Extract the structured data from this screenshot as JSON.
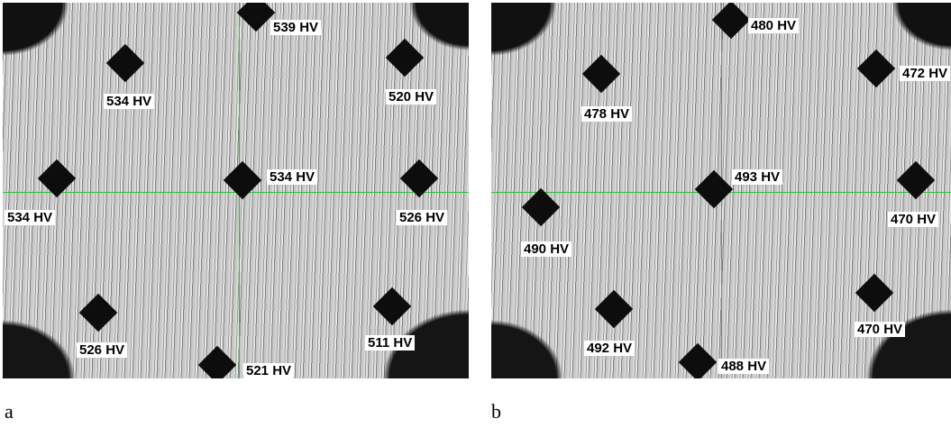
{
  "panels": [
    {
      "caption": "a",
      "indentations": [
        {
          "label": "539 HV"
        },
        {
          "label": "534 HV"
        },
        {
          "label": "520 HV"
        },
        {
          "label": "534 HV"
        },
        {
          "label": "534 HV"
        },
        {
          "label": "526 HV"
        },
        {
          "label": "526 HV"
        },
        {
          "label": "511 HV"
        },
        {
          "label": "521 HV"
        }
      ]
    },
    {
      "caption": "b",
      "indentations": [
        {
          "label": "480 HV"
        },
        {
          "label": "478 HV"
        },
        {
          "label": "472 HV"
        },
        {
          "label": "493 HV"
        },
        {
          "label": "490 HV"
        },
        {
          "label": "470 HV"
        },
        {
          "label": "470 HV"
        },
        {
          "label": "492 HV"
        },
        {
          "label": "488 HV"
        }
      ]
    }
  ]
}
